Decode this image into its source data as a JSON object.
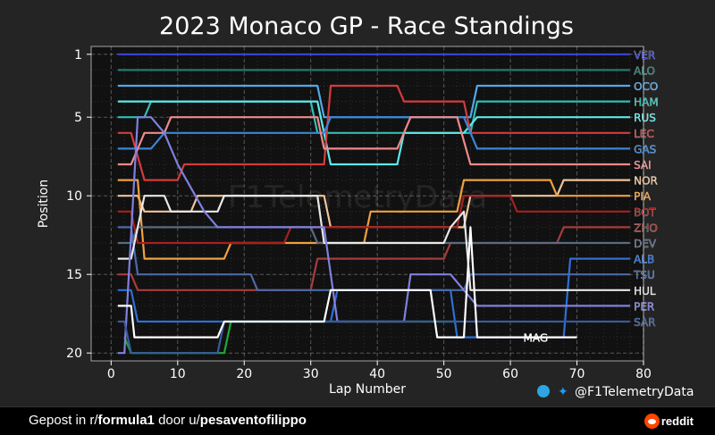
{
  "chart_data": {
    "type": "line",
    "title": "2023 Monaco GP - Race Standings",
    "xlabel": "Lap Number",
    "ylabel": "Position",
    "xlim": [
      -3,
      80
    ],
    "ylim": [
      20.5,
      0.5
    ],
    "x_ticks": [
      0,
      10,
      20,
      30,
      40,
      50,
      60,
      70,
      80
    ],
    "y_ticks": [
      1,
      5,
      10,
      15,
      20
    ],
    "grid": true,
    "watermark": "F1TelemetryData",
    "series": [
      {
        "name": "VER",
        "color": "#3b47d6",
        "start_lap": 1,
        "points": [
          [
            1,
            1
          ],
          [
            78,
            1
          ]
        ]
      },
      {
        "name": "ALO",
        "color": "#237a6e",
        "start_lap": 1,
        "points": [
          [
            1,
            2
          ],
          [
            78,
            2
          ]
        ]
      },
      {
        "name": "OCO",
        "color": "#52a8e8",
        "start_lap": 1,
        "points": [
          [
            1,
            3
          ],
          [
            31,
            3
          ],
          [
            32,
            5
          ],
          [
            54,
            5
          ],
          [
            55,
            3
          ],
          [
            78,
            3
          ]
        ]
      },
      {
        "name": "HAM",
        "color": "#2fbfb5",
        "start_lap": 1,
        "points": [
          [
            1,
            5
          ],
          [
            5,
            5
          ],
          [
            6,
            4
          ],
          [
            30,
            4
          ],
          [
            31,
            6
          ],
          [
            54,
            6
          ],
          [
            55,
            4
          ],
          [
            78,
            4
          ]
        ]
      },
      {
        "name": "RUS",
        "color": "#5ee8e8",
        "start_lap": 1,
        "points": [
          [
            1,
            4
          ],
          [
            31,
            4
          ],
          [
            33,
            8
          ],
          [
            43,
            8
          ],
          [
            44,
            6
          ],
          [
            53,
            6
          ],
          [
            55,
            5
          ],
          [
            78,
            5
          ]
        ]
      },
      {
        "name": "LEC",
        "color": "#d43c3c",
        "start_lap": 1,
        "points": [
          [
            1,
            6
          ],
          [
            3,
            6
          ],
          [
            5,
            9
          ],
          [
            10,
            9
          ],
          [
            11,
            8
          ],
          [
            32,
            8
          ],
          [
            33,
            3
          ],
          [
            43,
            3
          ],
          [
            44,
            4
          ],
          [
            53,
            4
          ],
          [
            54,
            6
          ],
          [
            78,
            6
          ]
        ]
      },
      {
        "name": "GAS",
        "color": "#3a86d6",
        "start_lap": 1,
        "points": [
          [
            1,
            7
          ],
          [
            6,
            7
          ],
          [
            8,
            6
          ],
          [
            32,
            6
          ],
          [
            33,
            5
          ],
          [
            53,
            5
          ],
          [
            55,
            7
          ],
          [
            78,
            7
          ]
        ]
      },
      {
        "name": "SAI",
        "color": "#f08a8a",
        "start_lap": 1,
        "points": [
          [
            1,
            8
          ],
          [
            3,
            8
          ],
          [
            5,
            6
          ],
          [
            8,
            6
          ],
          [
            9,
            5
          ],
          [
            31,
            5
          ],
          [
            32,
            7
          ],
          [
            43,
            7
          ],
          [
            45,
            5
          ],
          [
            52,
            5
          ],
          [
            54,
            8
          ],
          [
            78,
            8
          ]
        ]
      },
      {
        "name": "NOR",
        "color": "#f0c49a",
        "start_lap": 1,
        "points": [
          [
            1,
            10
          ],
          [
            4,
            10
          ],
          [
            5,
            11
          ],
          [
            12,
            11
          ],
          [
            13,
            10
          ],
          [
            32,
            10
          ],
          [
            33,
            12
          ],
          [
            53,
            12
          ],
          [
            54,
            10
          ],
          [
            67,
            10
          ],
          [
            68,
            9
          ],
          [
            78,
            9
          ]
        ]
      },
      {
        "name": "PIA",
        "color": "#f0a040",
        "start_lap": 1,
        "points": [
          [
            1,
            9
          ],
          [
            4,
            9
          ],
          [
            5,
            14
          ],
          [
            17,
            14
          ],
          [
            18,
            13
          ],
          [
            38,
            13
          ],
          [
            39,
            11
          ],
          [
            52,
            11
          ],
          [
            53,
            9
          ],
          [
            66,
            9
          ],
          [
            67,
            10
          ],
          [
            78,
            10
          ]
        ]
      },
      {
        "name": "BOT",
        "color": "#a82020",
        "start_lap": 1,
        "points": [
          [
            1,
            11
          ],
          [
            3,
            11
          ],
          [
            4,
            13
          ],
          [
            26,
            13
          ],
          [
            27,
            12
          ],
          [
            52,
            12
          ],
          [
            53,
            10
          ],
          [
            60,
            10
          ],
          [
            61,
            11
          ],
          [
            78,
            11
          ]
        ]
      },
      {
        "name": "ZHO",
        "color": "#a83c3c",
        "start_lap": 1,
        "points": [
          [
            1,
            15
          ],
          [
            3,
            15
          ],
          [
            4,
            16
          ],
          [
            30,
            16
          ],
          [
            31,
            14
          ],
          [
            50,
            14
          ],
          [
            51,
            13
          ],
          [
            67,
            13
          ],
          [
            68,
            12
          ],
          [
            78,
            12
          ]
        ]
      },
      {
        "name": "DEV",
        "color": "#5a6a82",
        "start_lap": 1,
        "points": [
          [
            1,
            13
          ],
          [
            3,
            13
          ],
          [
            4,
            12
          ],
          [
            30,
            12
          ],
          [
            31,
            13
          ],
          [
            66,
            13
          ],
          [
            67,
            13
          ],
          [
            78,
            13
          ]
        ]
      },
      {
        "name": "ALB",
        "color": "#2f6fd6",
        "start_lap": 1,
        "points": [
          [
            1,
            16
          ],
          [
            3,
            16
          ],
          [
            4,
            18
          ],
          [
            33,
            18
          ],
          [
            34,
            16
          ],
          [
            51,
            16
          ],
          [
            52,
            19
          ],
          [
            68,
            19
          ],
          [
            69,
            14
          ],
          [
            78,
            14
          ]
        ]
      },
      {
        "name": "TSU",
        "color": "#4a6aa8",
        "start_lap": 1,
        "points": [
          [
            1,
            12
          ],
          [
            3,
            12
          ],
          [
            4,
            15
          ],
          [
            21,
            15
          ],
          [
            22,
            16
          ],
          [
            53,
            16
          ],
          [
            54,
            15
          ],
          [
            70,
            15
          ],
          [
            71,
            15
          ],
          [
            78,
            15
          ]
        ]
      },
      {
        "name": "HUL",
        "color": "#e8e8e8",
        "start_lap": 1,
        "points": [
          [
            1,
            14
          ],
          [
            3,
            14
          ],
          [
            5,
            10
          ],
          [
            8,
            10
          ],
          [
            9,
            11
          ],
          [
            16,
            11
          ],
          [
            17,
            10
          ],
          [
            31,
            10
          ],
          [
            32,
            13
          ],
          [
            50,
            13
          ],
          [
            51,
            12
          ],
          [
            53,
            11
          ],
          [
            54,
            16
          ],
          [
            66,
            16
          ],
          [
            68,
            16
          ],
          [
            78,
            16
          ]
        ]
      },
      {
        "name": "PER",
        "color": "#8080e0",
        "start_lap": 1,
        "points": [
          [
            1,
            20
          ],
          [
            2,
            20
          ],
          [
            4,
            5
          ],
          [
            6,
            5
          ],
          [
            8,
            6
          ],
          [
            10,
            8
          ],
          [
            14,
            11
          ],
          [
            16,
            12
          ],
          [
            20,
            12
          ],
          [
            26,
            12
          ],
          [
            32,
            12
          ],
          [
            34,
            18
          ],
          [
            44,
            18
          ],
          [
            45,
            15
          ],
          [
            51,
            15
          ],
          [
            53,
            16
          ],
          [
            55,
            17
          ],
          [
            78,
            17
          ]
        ]
      },
      {
        "name": "SAR",
        "color": "#3a5a9a",
        "start_lap": 1,
        "points": [
          [
            1,
            18
          ],
          [
            2,
            18
          ],
          [
            3,
            20
          ],
          [
            16,
            20
          ],
          [
            17,
            18
          ],
          [
            52,
            18
          ],
          [
            53,
            18
          ],
          [
            78,
            18
          ]
        ]
      },
      {
        "name": "MAG",
        "color": "#ffffff",
        "start_lap": 1,
        "points": [
          [
            1,
            17
          ],
          [
            3,
            17
          ],
          [
            3.5,
            19
          ],
          [
            16,
            19
          ],
          [
            17,
            18
          ],
          [
            32,
            18
          ],
          [
            33,
            16
          ],
          [
            48,
            16
          ],
          [
            49,
            19
          ],
          [
            53,
            19
          ],
          [
            54,
            12
          ],
          [
            55,
            19
          ],
          [
            70,
            19
          ]
        ]
      }
    ],
    "extra_lines_colors": [
      "#1fa83a"
    ],
    "extra_lines": [
      {
        "color": "#1fa83a",
        "points": [
          [
            2,
            19
          ],
          [
            3,
            20
          ],
          [
            17,
            20
          ],
          [
            18,
            18
          ],
          [
            52,
            18
          ]
        ]
      }
    ]
  },
  "footer": {
    "prefix": "Gepost in r/",
    "subreddit": "formula1",
    "middle": " door u/",
    "user": "pesaventofilippo",
    "reddit": "reddit"
  },
  "credit": "@F1TelemetryData"
}
